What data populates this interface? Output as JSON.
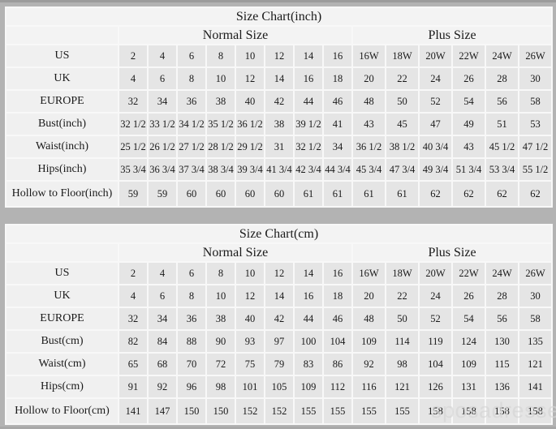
{
  "watermark": "sposadresses",
  "colors": {
    "page_background": "#b3b3b3",
    "table_grid": "#f8f8f8",
    "header_cell": "#f3f3f3",
    "label_cell": "#f0f0f0",
    "data_cell": "#e5e5e5",
    "text": "#1a1a1a",
    "watermark": "#d6d6d6"
  },
  "chart_data": [
    {
      "type": "table",
      "title": "Size Chart(inch)",
      "column_groups": [
        {
          "label": "Normal Size",
          "span": 8
        },
        {
          "label": "Plus Size",
          "span": 6
        }
      ],
      "rows": [
        {
          "label": "US",
          "values": [
            "2",
            "4",
            "6",
            "8",
            "10",
            "12",
            "14",
            "16",
            "16W",
            "18W",
            "20W",
            "22W",
            "24W",
            "26W"
          ]
        },
        {
          "label": "UK",
          "values": [
            "4",
            "6",
            "8",
            "10",
            "12",
            "14",
            "16",
            "18",
            "20",
            "22",
            "24",
            "26",
            "28",
            "30"
          ]
        },
        {
          "label": "EUROPE",
          "values": [
            "32",
            "34",
            "36",
            "38",
            "40",
            "42",
            "44",
            "46",
            "48",
            "50",
            "52",
            "54",
            "56",
            "58"
          ]
        },
        {
          "label": "Bust(inch)",
          "values": [
            "32 1/2",
            "33 1/2",
            "34 1/2",
            "35 1/2",
            "36 1/2",
            "38",
            "39 1/2",
            "41",
            "43",
            "45",
            "47",
            "49",
            "51",
            "53"
          ]
        },
        {
          "label": "Waist(inch)",
          "values": [
            "25 1/2",
            "26 1/2",
            "27 1/2",
            "28 1/2",
            "29 1/2",
            "31",
            "32 1/2",
            "34",
            "36 1/2",
            "38 1/2",
            "40 3/4",
            "43",
            "45 1/2",
            "47 1/2"
          ]
        },
        {
          "label": "Hips(inch)",
          "values": [
            "35 3/4",
            "36 3/4",
            "37 3/4",
            "38 3/4",
            "39 3/4",
            "41 3/4",
            "42 3/4",
            "44 3/4",
            "45 3/4",
            "47 3/4",
            "49 3/4",
            "51 3/4",
            "53 3/4",
            "55 1/2"
          ]
        },
        {
          "label": "Hollow to Floor(inch)",
          "values": [
            "59",
            "59",
            "60",
            "60",
            "60",
            "60",
            "61",
            "61",
            "61",
            "61",
            "62",
            "62",
            "62",
            "62"
          ]
        }
      ]
    },
    {
      "type": "table",
      "title": "Size Chart(cm)",
      "column_groups": [
        {
          "label": "Normal Size",
          "span": 8
        },
        {
          "label": "Plus Size",
          "span": 6
        }
      ],
      "rows": [
        {
          "label": "US",
          "values": [
            "2",
            "4",
            "6",
            "8",
            "10",
            "12",
            "14",
            "16",
            "16W",
            "18W",
            "20W",
            "22W",
            "24W",
            "26W"
          ]
        },
        {
          "label": "UK",
          "values": [
            "4",
            "6",
            "8",
            "10",
            "12",
            "14",
            "16",
            "18",
            "20",
            "22",
            "24",
            "26",
            "28",
            "30"
          ]
        },
        {
          "label": "EUROPE",
          "values": [
            "32",
            "34",
            "36",
            "38",
            "40",
            "42",
            "44",
            "46",
            "48",
            "50",
            "52",
            "54",
            "56",
            "58"
          ]
        },
        {
          "label": "Bust(cm)",
          "values": [
            "82",
            "84",
            "88",
            "90",
            "93",
            "97",
            "100",
            "104",
            "109",
            "114",
            "119",
            "124",
            "130",
            "135"
          ]
        },
        {
          "label": "Waist(cm)",
          "values": [
            "65",
            "68",
            "70",
            "72",
            "75",
            "79",
            "83",
            "86",
            "92",
            "98",
            "104",
            "109",
            "115",
            "121"
          ]
        },
        {
          "label": "Hips(cm)",
          "values": [
            "91",
            "92",
            "96",
            "98",
            "101",
            "105",
            "109",
            "112",
            "116",
            "121",
            "126",
            "131",
            "136",
            "141"
          ]
        },
        {
          "label": "Hollow to Floor(cm)",
          "values": [
            "141",
            "147",
            "150",
            "150",
            "152",
            "152",
            "155",
            "155",
            "155",
            "155",
            "158",
            "158",
            "158",
            "158"
          ]
        }
      ]
    }
  ]
}
